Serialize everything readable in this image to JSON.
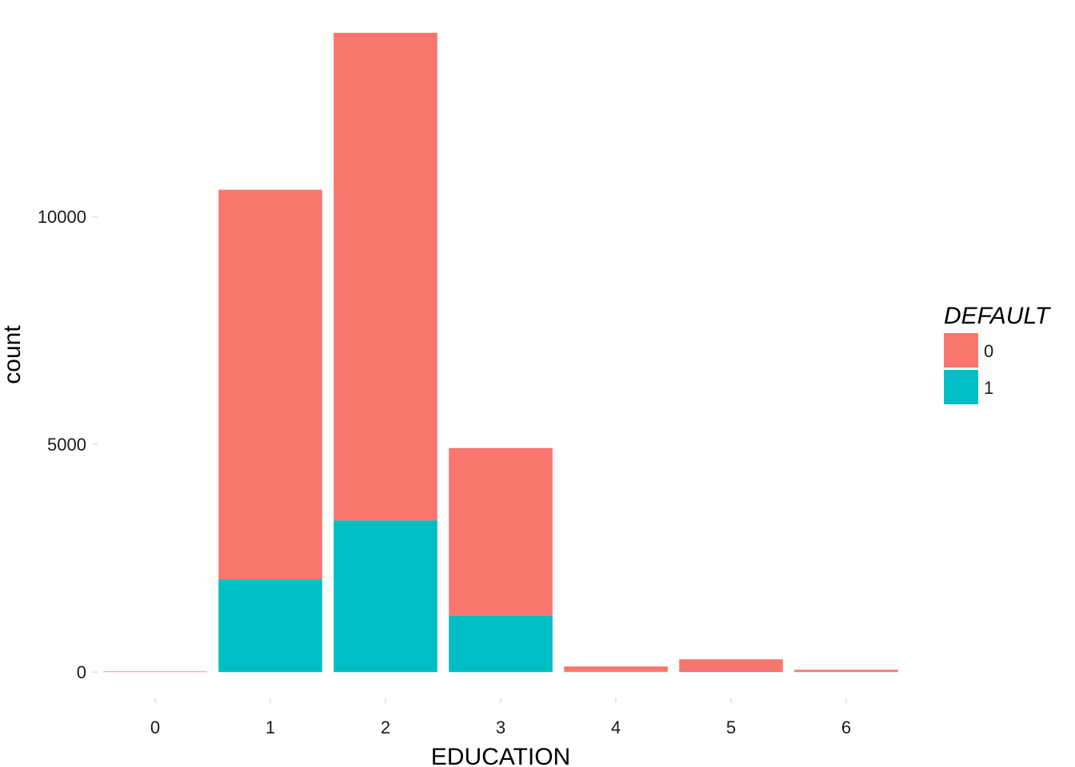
{
  "chart_data": {
    "type": "bar",
    "stacked": true,
    "categories": [
      "0",
      "1",
      "2",
      "3",
      "4",
      "5",
      "6"
    ],
    "series": [
      {
        "name": "0",
        "color": "#F8766D",
        "values": [
          14,
          8549,
          10700,
          3680,
          116,
          262,
          43
        ]
      },
      {
        "name": "1",
        "color": "#00BFC4",
        "values": [
          0,
          2036,
          3330,
          1237,
          7,
          18,
          8
        ]
      }
    ],
    "xlabel": "EDUCATION",
    "ylabel": "count",
    "yticks": [
      0,
      5000,
      10000
    ],
    "ylim": [
      -470,
      14750
    ],
    "grid": false,
    "legend": {
      "title": "DEFAULT",
      "placement": "right"
    }
  }
}
